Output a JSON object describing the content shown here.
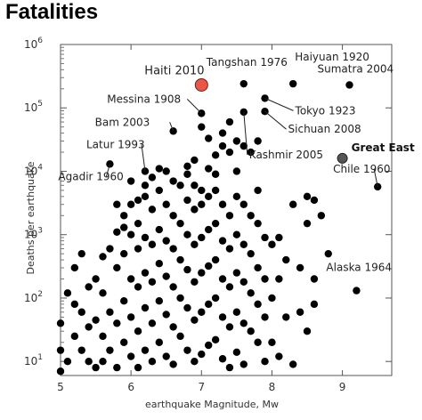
{
  "chart_data": {
    "type": "scatter",
    "title": "Fatalities",
    "xlabel": "earthquake Magnitude, Mw",
    "ylabel": "Deaths per earthquake",
    "xlim": [
      5,
      9.7
    ],
    "ylim": [
      6,
      1000000
    ],
    "yscale": "log",
    "grid": false,
    "x_ticks": [
      5,
      6,
      7,
      8,
      9
    ],
    "y_ticks": [
      {
        "value": 10,
        "base": "10",
        "exp": "1"
      },
      {
        "value": 100,
        "base": "10",
        "exp": "2"
      },
      {
        "value": 1000,
        "base": "10",
        "exp": "3"
      },
      {
        "value": 10000,
        "base": "10",
        "exp": "4"
      },
      {
        "value": 100000,
        "base": "10",
        "exp": "5"
      },
      {
        "value": 1000000,
        "base": "10",
        "exp": "6"
      }
    ],
    "annotations": [
      {
        "label": "Haiti 2010",
        "x": 7.0,
        "y": 230000,
        "style": "highlight",
        "color": "#e8584a"
      },
      {
        "label": "Great East",
        "x": 9.0,
        "y": 16000,
        "style": "highlight-dark",
        "color": "#555555"
      },
      {
        "label": "Tangshan 1976",
        "x": 7.6,
        "y": 240000
      },
      {
        "label": "Haiyuan 1920",
        "x": 8.3,
        "y": 240000
      },
      {
        "label": "Sumatra 2004",
        "x": 9.1,
        "y": 230000
      },
      {
        "label": "Messina 1908",
        "x": 7.0,
        "y": 82000
      },
      {
        "label": "Tokyo 1923",
        "x": 7.9,
        "y": 142000
      },
      {
        "label": "Sichuan 2008",
        "x": 7.9,
        "y": 88000
      },
      {
        "label": "Bam 2003",
        "x": 6.6,
        "y": 43000
      },
      {
        "label": "Kashmir 2005",
        "x": 7.6,
        "y": 86000
      },
      {
        "label": "Latur 1993",
        "x": 6.2,
        "y": 10000
      },
      {
        "label": "Agadir 1960",
        "x": 5.7,
        "y": 13000
      },
      {
        "label": "Chile 1960",
        "x": 9.5,
        "y": 5700
      },
      {
        "label": "Alaska 1964",
        "x": 9.2,
        "y": 131
      }
    ],
    "points": [
      [
        7.0,
        82000
      ],
      [
        6.6,
        43000
      ],
      [
        6.2,
        10000
      ],
      [
        5.7,
        13000
      ],
      [
        7.6,
        240000
      ],
      [
        8.3,
        240000
      ],
      [
        9.1,
        230000
      ],
      [
        7.9,
        142000
      ],
      [
        7.9,
        88000
      ],
      [
        7.6,
        86000
      ],
      [
        9.5,
        5700
      ],
      [
        9.2,
        131
      ],
      [
        7.0,
        50000
      ],
      [
        7.4,
        60000
      ],
      [
        7.3,
        40000
      ],
      [
        7.5,
        30000
      ],
      [
        7.8,
        30000
      ],
      [
        7.7,
        20000
      ],
      [
        7.3,
        25000
      ],
      [
        7.1,
        33000
      ],
      [
        7.4,
        20000
      ],
      [
        7.6,
        25000
      ],
      [
        7.2,
        18000
      ],
      [
        7.5,
        10000
      ],
      [
        7.8,
        5000
      ],
      [
        7.1,
        11000
      ],
      [
        6.8,
        9000
      ],
      [
        6.6,
        7000
      ],
      [
        6.9,
        6000
      ],
      [
        7.0,
        5000
      ],
      [
        8.3,
        3000
      ],
      [
        8.5,
        4000
      ],
      [
        8.6,
        3500
      ],
      [
        8.7,
        2000
      ],
      [
        8.5,
        1500
      ],
      [
        8.8,
        500
      ],
      [
        8.6,
        200
      ],
      [
        8.4,
        300
      ],
      [
        8.6,
        80
      ],
      [
        8.5,
        30
      ],
      [
        8.0,
        700
      ],
      [
        8.1,
        900
      ],
      [
        8.2,
        400
      ],
      [
        8.1,
        200
      ],
      [
        8.0,
        100
      ],
      [
        8.2,
        50
      ],
      [
        8.0,
        20
      ],
      [
        8.1,
        12
      ],
      [
        8.3,
        9
      ],
      [
        8.4,
        60
      ],
      [
        5.0,
        40
      ],
      [
        5.0,
        15
      ],
      [
        5.1,
        10
      ],
      [
        5.0,
        7
      ],
      [
        5.1,
        120
      ],
      [
        5.2,
        80
      ],
      [
        5.2,
        25
      ],
      [
        5.3,
        60
      ],
      [
        5.3,
        15
      ],
      [
        5.4,
        35
      ],
      [
        5.4,
        10
      ],
      [
        5.5,
        200
      ],
      [
        5.5,
        45
      ],
      [
        5.5,
        8
      ],
      [
        5.6,
        120
      ],
      [
        5.6,
        25
      ],
      [
        5.6,
        10
      ],
      [
        5.7,
        600
      ],
      [
        5.7,
        60
      ],
      [
        5.7,
        15
      ],
      [
        5.8,
        1100
      ],
      [
        5.8,
        300
      ],
      [
        5.8,
        40
      ],
      [
        5.8,
        8
      ],
      [
        5.9,
        2000
      ],
      [
        5.9,
        500
      ],
      [
        5.9,
        90
      ],
      [
        5.9,
        20
      ],
      [
        6.0,
        3000
      ],
      [
        6.0,
        1000
      ],
      [
        6.0,
        200
      ],
      [
        6.0,
        50
      ],
      [
        6.0,
        12
      ],
      [
        6.1,
        1500
      ],
      [
        6.1,
        600
      ],
      [
        6.1,
        150
      ],
      [
        6.1,
        30
      ],
      [
        6.1,
        8
      ],
      [
        6.2,
        4000
      ],
      [
        6.2,
        900
      ],
      [
        6.2,
        250
      ],
      [
        6.2,
        70
      ],
      [
        6.2,
        15
      ],
      [
        6.3,
        2500
      ],
      [
        6.3,
        700
      ],
      [
        6.3,
        180
      ],
      [
        6.3,
        40
      ],
      [
        6.3,
        10
      ],
      [
        6.4,
        5000
      ],
      [
        6.4,
        1200
      ],
      [
        6.4,
        350
      ],
      [
        6.4,
        90
      ],
      [
        6.4,
        20
      ],
      [
        6.5,
        3000
      ],
      [
        6.5,
        800
      ],
      [
        6.5,
        220
      ],
      [
        6.5,
        55
      ],
      [
        6.5,
        12
      ],
      [
        6.6,
        2000
      ],
      [
        6.6,
        600
      ],
      [
        6.6,
        150
      ],
      [
        6.6,
        35
      ],
      [
        6.6,
        9
      ],
      [
        6.7,
        6000
      ],
      [
        6.7,
        1500
      ],
      [
        6.7,
        400
      ],
      [
        6.7,
        100
      ],
      [
        6.7,
        25
      ],
      [
        6.8,
        3500
      ],
      [
        6.8,
        1000
      ],
      [
        6.8,
        280
      ],
      [
        6.8,
        70
      ],
      [
        6.8,
        15
      ],
      [
        6.9,
        2500
      ],
      [
        6.9,
        700
      ],
      [
        6.9,
        180
      ],
      [
        6.9,
        45
      ],
      [
        6.9,
        10
      ],
      [
        7.0,
        3000
      ],
      [
        7.0,
        900
      ],
      [
        7.0,
        250
      ],
      [
        7.0,
        60
      ],
      [
        7.0,
        13
      ],
      [
        7.1,
        4000
      ],
      [
        7.1,
        1200
      ],
      [
        7.1,
        320
      ],
      [
        7.1,
        80
      ],
      [
        7.1,
        18
      ],
      [
        7.2,
        5000
      ],
      [
        7.2,
        1500
      ],
      [
        7.2,
        400
      ],
      [
        7.2,
        100
      ],
      [
        7.2,
        22
      ],
      [
        7.3,
        3000
      ],
      [
        7.3,
        800
      ],
      [
        7.3,
        200
      ],
      [
        7.3,
        50
      ],
      [
        7.3,
        11
      ],
      [
        7.4,
        2000
      ],
      [
        7.4,
        600
      ],
      [
        7.4,
        150
      ],
      [
        7.4,
        35
      ],
      [
        7.4,
        8
      ],
      [
        7.5,
        4000
      ],
      [
        7.5,
        1000
      ],
      [
        7.5,
        250
      ],
      [
        7.5,
        60
      ],
      [
        7.5,
        14
      ],
      [
        7.6,
        3000
      ],
      [
        7.6,
        700
      ],
      [
        7.6,
        180
      ],
      [
        7.6,
        40
      ],
      [
        7.6,
        9
      ],
      [
        7.7,
        2000
      ],
      [
        7.7,
        500
      ],
      [
        7.7,
        120
      ],
      [
        7.7,
        30
      ],
      [
        7.8,
        1500
      ],
      [
        7.8,
        300
      ],
      [
        7.8,
        80
      ],
      [
        7.8,
        20
      ],
      [
        7.9,
        900
      ],
      [
        7.9,
        200
      ],
      [
        7.9,
        50
      ],
      [
        7.9,
        10
      ],
      [
        5.2,
        300
      ],
      [
        5.3,
        500
      ],
      [
        5.4,
        150
      ],
      [
        5.6,
        450
      ],
      [
        5.9,
        1300
      ],
      [
        6.0,
        7000
      ],
      [
        6.1,
        3500
      ],
      [
        6.3,
        8000
      ],
      [
        6.5,
        10000
      ],
      [
        6.8,
        12000
      ],
      [
        6.9,
        15000
      ],
      [
        7.2,
        9000
      ],
      [
        6.4,
        11000
      ],
      [
        5.8,
        3000
      ],
      [
        6.2,
        6000
      ]
    ]
  }
}
